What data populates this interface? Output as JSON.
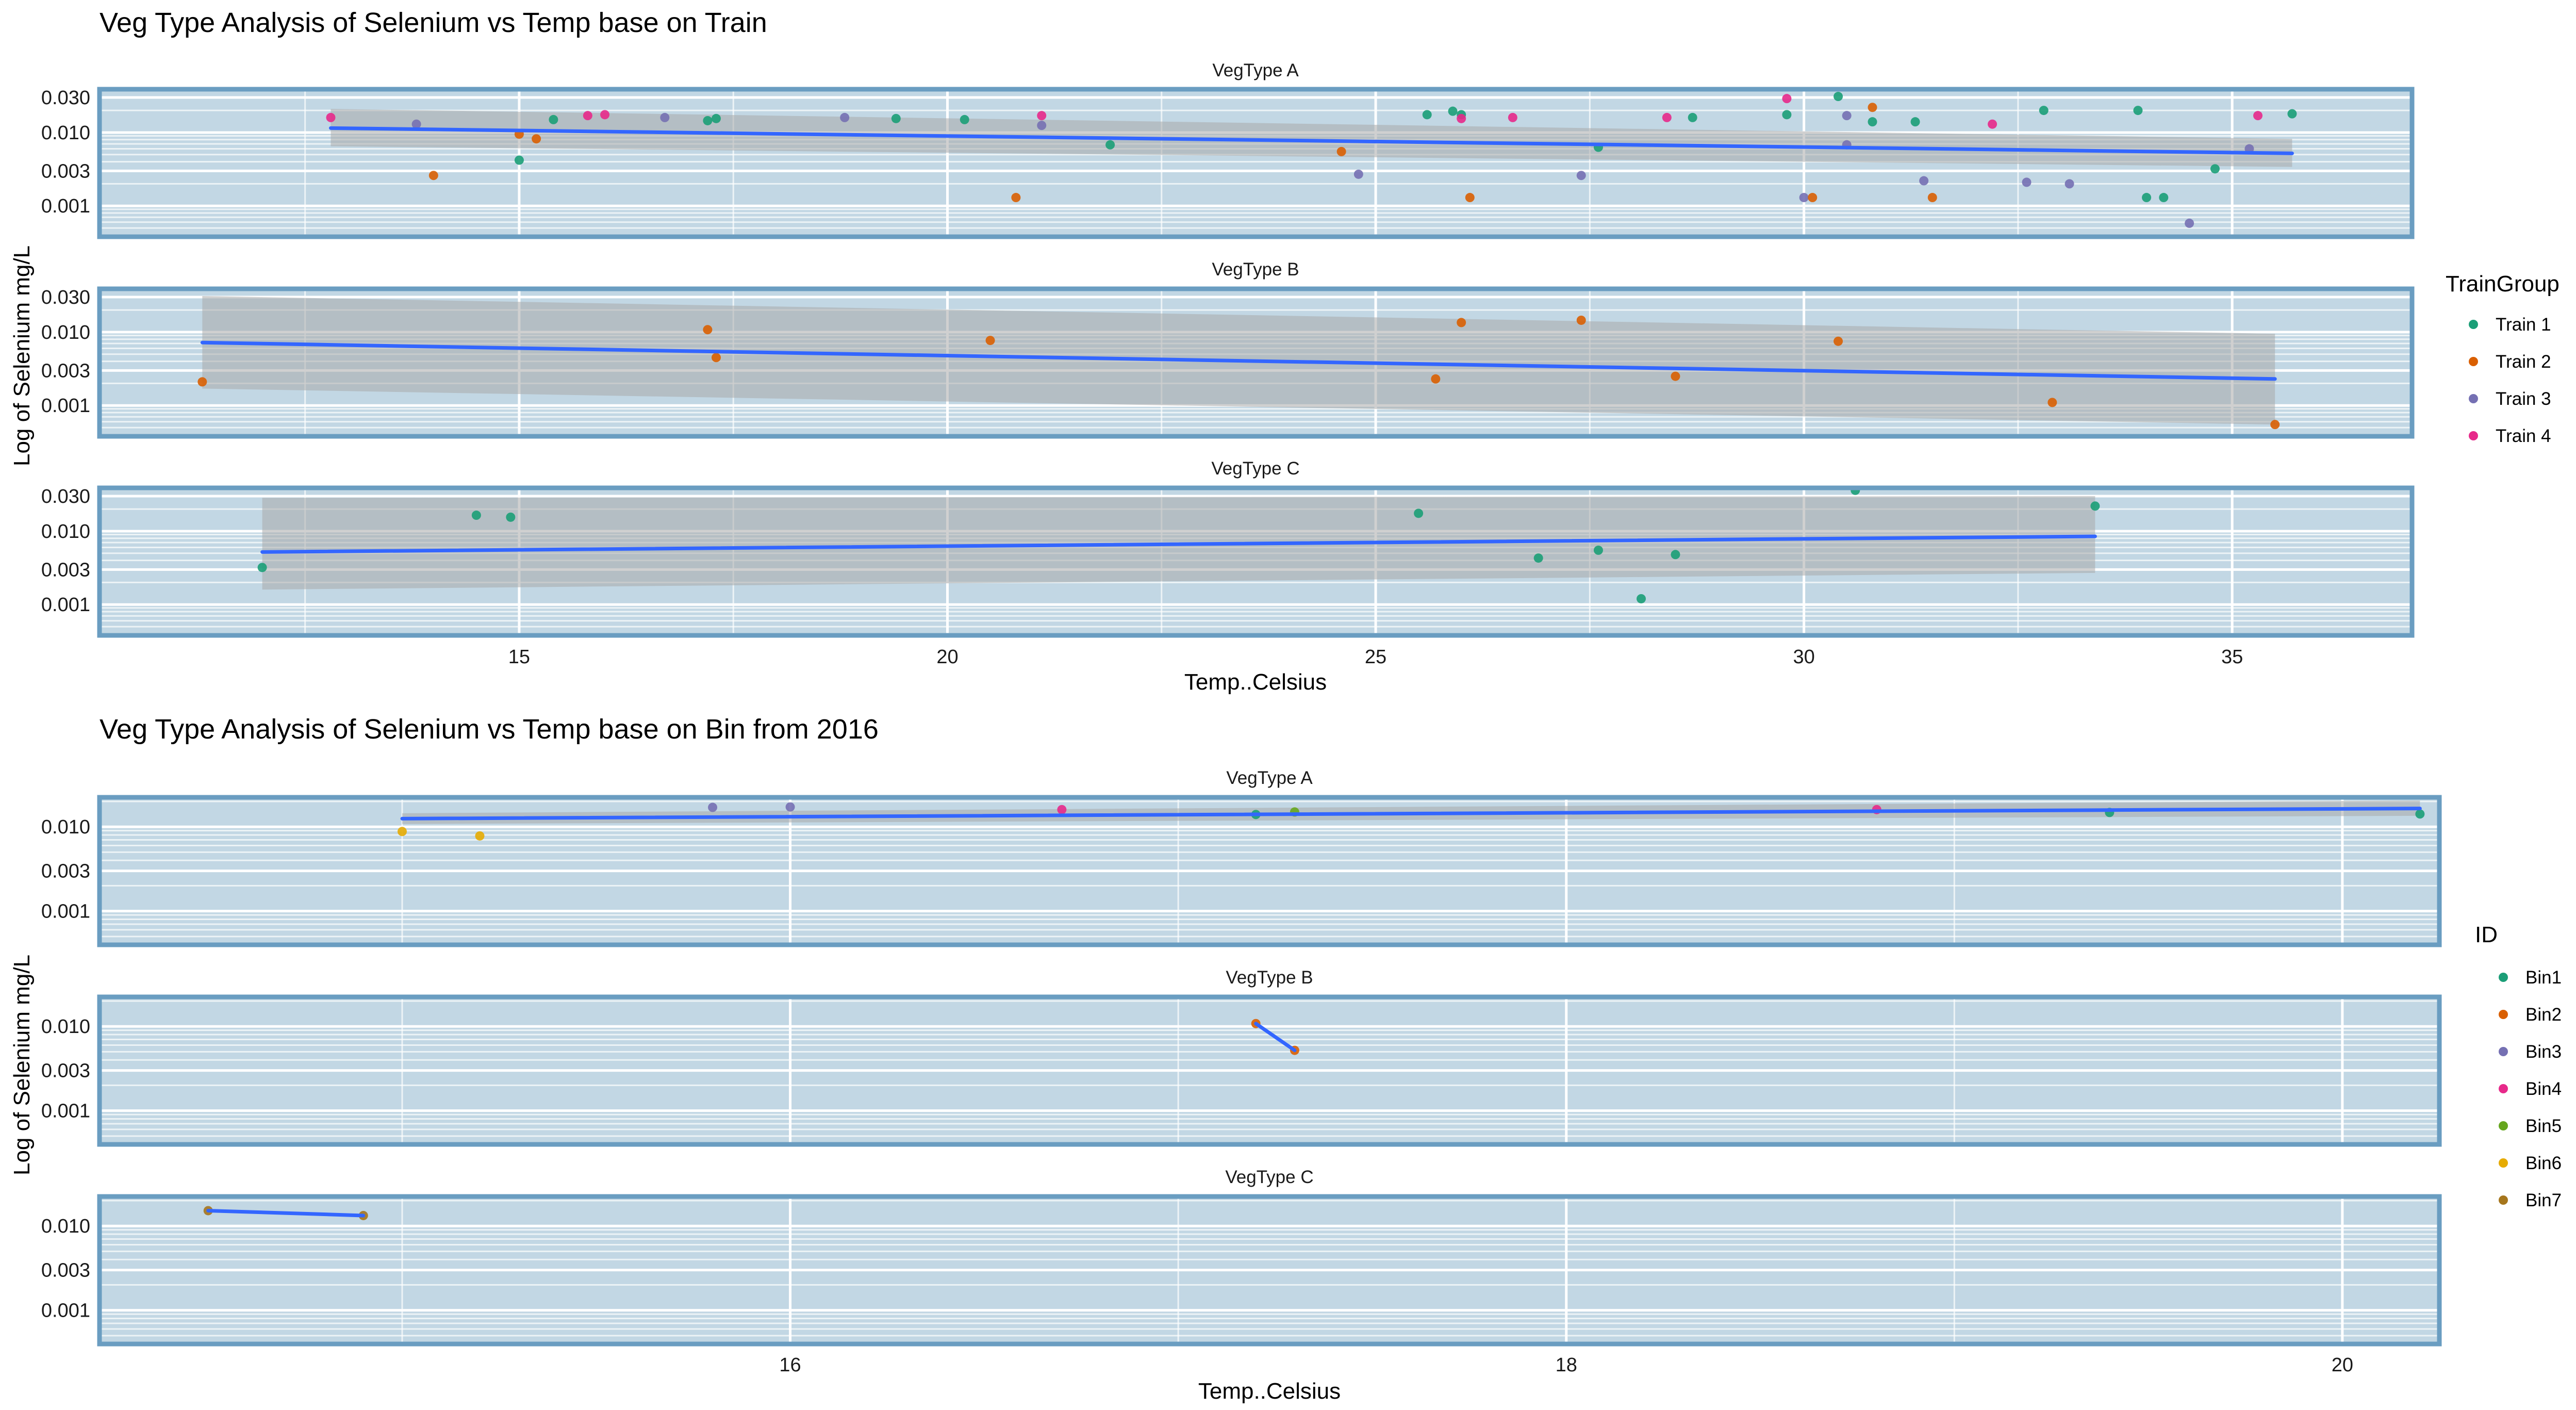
{
  "colors": {
    "panel_bg": "#c2d7e4",
    "panel_border": "#6a9dc1",
    "grid": "#ffffff",
    "smooth_line": "#3366ff",
    "ribbon": "#a9a9a9"
  },
  "chart_data": [
    {
      "type": "scatter",
      "title": "Veg Type Analysis of Selenium vs Temp base on Train",
      "xlabel": "Temp..Celsius",
      "ylabel": "Log of Selenium mg/L",
      "xlim": [
        10.1,
        37.1
      ],
      "ylim_log10": [
        -3.42,
        -1.41
      ],
      "y_scale": "log10",
      "x_ticks": [
        15,
        20,
        25,
        30,
        35
      ],
      "x_tick_labels": [
        "15",
        "20",
        "25",
        "30",
        "35"
      ],
      "y_ticks": [
        0.001,
        0.003,
        0.01,
        0.03
      ],
      "y_tick_labels": [
        "0.001",
        "0.003",
        "0.010",
        "0.030"
      ],
      "grid": true,
      "legend": {
        "title": "TrainGroup",
        "position": "right",
        "labels": [
          "Train 1",
          "Train 2",
          "Train 3",
          "Train 4"
        ],
        "colors": [
          "#1b9e77",
          "#d95f02",
          "#7570b3",
          "#e7298a"
        ]
      },
      "panels": [
        {
          "strip": "VegType A",
          "smooth": {
            "x": [
              12.8,
              35.7
            ],
            "y": [
              0.0115,
              0.0052
            ],
            "band_lo": [
              0.0065,
              0.0034
            ],
            "band_hi": [
              0.021,
              0.0082
            ]
          },
          "points": [
            {
              "x": 12.8,
              "y": 0.016,
              "g": 3
            },
            {
              "x": 13.8,
              "y": 0.013,
              "g": 2
            },
            {
              "x": 14.0,
              "y": 0.0026,
              "g": 1
            },
            {
              "x": 15.0,
              "y": 0.0042,
              "g": 0
            },
            {
              "x": 15.0,
              "y": 0.0095,
              "g": 1
            },
            {
              "x": 15.2,
              "y": 0.0082,
              "g": 1
            },
            {
              "x": 15.4,
              "y": 0.015,
              "g": 0
            },
            {
              "x": 15.8,
              "y": 0.017,
              "g": 3
            },
            {
              "x": 16.0,
              "y": 0.0175,
              "g": 3
            },
            {
              "x": 16.7,
              "y": 0.016,
              "g": 2
            },
            {
              "x": 17.2,
              "y": 0.0145,
              "g": 0
            },
            {
              "x": 17.3,
              "y": 0.0155,
              "g": 0
            },
            {
              "x": 18.8,
              "y": 0.016,
              "g": 2
            },
            {
              "x": 19.4,
              "y": 0.0155,
              "g": 0
            },
            {
              "x": 20.2,
              "y": 0.015,
              "g": 0
            },
            {
              "x": 20.8,
              "y": 0.0013,
              "g": 1
            },
            {
              "x": 21.1,
              "y": 0.0125,
              "g": 2
            },
            {
              "x": 21.1,
              "y": 0.017,
              "g": 3
            },
            {
              "x": 21.9,
              "y": 0.0068,
              "g": 0
            },
            {
              "x": 24.6,
              "y": 0.0055,
              "g": 1
            },
            {
              "x": 24.8,
              "y": 0.0027,
              "g": 2
            },
            {
              "x": 25.6,
              "y": 0.0175,
              "g": 0
            },
            {
              "x": 25.9,
              "y": 0.0195,
              "g": 0
            },
            {
              "x": 26.0,
              "y": 0.0175,
              "g": 0
            },
            {
              "x": 26.0,
              "y": 0.0155,
              "g": 3
            },
            {
              "x": 26.1,
              "y": 0.0013,
              "g": 1
            },
            {
              "x": 26.6,
              "y": 0.016,
              "g": 3
            },
            {
              "x": 27.4,
              "y": 0.0026,
              "g": 2
            },
            {
              "x": 27.6,
              "y": 0.0063,
              "g": 0
            },
            {
              "x": 28.4,
              "y": 0.016,
              "g": 3
            },
            {
              "x": 28.7,
              "y": 0.016,
              "g": 0
            },
            {
              "x": 29.8,
              "y": 0.0175,
              "g": 0
            },
            {
              "x": 29.8,
              "y": 0.029,
              "g": 3
            },
            {
              "x": 30.0,
              "y": 0.0013,
              "g": 2
            },
            {
              "x": 30.1,
              "y": 0.0013,
              "g": 1
            },
            {
              "x": 30.4,
              "y": 0.031,
              "g": 0
            },
            {
              "x": 30.5,
              "y": 0.017,
              "g": 2
            },
            {
              "x": 30.5,
              "y": 0.0068,
              "g": 2
            },
            {
              "x": 30.8,
              "y": 0.022,
              "g": 1
            },
            {
              "x": 30.8,
              "y": 0.014,
              "g": 0
            },
            {
              "x": 31.3,
              "y": 0.014,
              "g": 0
            },
            {
              "x": 31.4,
              "y": 0.0022,
              "g": 2
            },
            {
              "x": 31.5,
              "y": 0.0013,
              "g": 1
            },
            {
              "x": 32.2,
              "y": 0.013,
              "g": 3
            },
            {
              "x": 32.6,
              "y": 0.0021,
              "g": 2
            },
            {
              "x": 32.8,
              "y": 0.02,
              "g": 0
            },
            {
              "x": 33.1,
              "y": 0.002,
              "g": 2
            },
            {
              "x": 33.9,
              "y": 0.02,
              "g": 0
            },
            {
              "x": 34.0,
              "y": 0.0013,
              "g": 0
            },
            {
              "x": 34.2,
              "y": 0.0013,
              "g": 0
            },
            {
              "x": 34.5,
              "y": 0.00058,
              "g": 2
            },
            {
              "x": 34.8,
              "y": 0.0032,
              "g": 0
            },
            {
              "x": 35.2,
              "y": 0.006,
              "g": 2
            },
            {
              "x": 35.3,
              "y": 0.017,
              "g": 3
            },
            {
              "x": 35.7,
              "y": 0.018,
              "g": 0
            }
          ]
        },
        {
          "strip": "VegType B",
          "smooth": {
            "x": [
              11.3,
              35.5
            ],
            "y": [
              0.0072,
              0.0023
            ],
            "band_lo": [
              0.0017,
              0.00055
            ],
            "band_hi": [
              0.031,
              0.0095
            ]
          },
          "points": [
            {
              "x": 11.3,
              "y": 0.0021,
              "g": 1
            },
            {
              "x": 17.2,
              "y": 0.0108,
              "g": 1
            },
            {
              "x": 17.3,
              "y": 0.0045,
              "g": 1
            },
            {
              "x": 20.5,
              "y": 0.0077,
              "g": 1
            },
            {
              "x": 25.7,
              "y": 0.0023,
              "g": 1
            },
            {
              "x": 26.0,
              "y": 0.0135,
              "g": 1
            },
            {
              "x": 27.4,
              "y": 0.0145,
              "g": 1
            },
            {
              "x": 28.5,
              "y": 0.0025,
              "g": 1
            },
            {
              "x": 30.4,
              "y": 0.0075,
              "g": 1
            },
            {
              "x": 32.9,
              "y": 0.0011,
              "g": 1
            },
            {
              "x": 35.5,
              "y": 0.00055,
              "g": 1
            }
          ]
        },
        {
          "strip": "VegType C",
          "smooth": {
            "x": [
              12.0,
              33.4
            ],
            "y": [
              0.0052,
              0.0085
            ],
            "band_lo": [
              0.0016,
              0.0027
            ],
            "band_hi": [
              0.0285,
              0.03
            ]
          },
          "points": [
            {
              "x": 12.0,
              "y": 0.0032,
              "g": 0
            },
            {
              "x": 14.5,
              "y": 0.0165,
              "g": 0
            },
            {
              "x": 14.9,
              "y": 0.0155,
              "g": 0
            },
            {
              "x": 25.5,
              "y": 0.0175,
              "g": 0
            },
            {
              "x": 26.9,
              "y": 0.0043,
              "g": 0
            },
            {
              "x": 27.6,
              "y": 0.0055,
              "g": 0
            },
            {
              "x": 28.1,
              "y": 0.0012,
              "g": 0
            },
            {
              "x": 28.5,
              "y": 0.0048,
              "g": 0
            },
            {
              "x": 30.6,
              "y": 0.036,
              "g": 0
            },
            {
              "x": 33.4,
              "y": 0.022,
              "g": 0
            }
          ]
        }
      ]
    },
    {
      "type": "scatter",
      "title": "Veg Type Analysis of Selenium vs Temp base on Bin from 2016",
      "xlabel": "Temp..Celsius",
      "ylabel": "Log of Selenium mg/L",
      "xlim": [
        14.22,
        20.25
      ],
      "ylim_log10": [
        -3.4,
        -1.65
      ],
      "y_scale": "log10",
      "x_ticks": [
        16,
        18,
        20
      ],
      "x_tick_labels": [
        "16",
        "18",
        "20"
      ],
      "y_ticks": [
        0.001,
        0.003,
        0.01
      ],
      "y_tick_labels": [
        "0.001",
        "0.003",
        "0.010"
      ],
      "grid": true,
      "legend": {
        "title": "ID",
        "position": "right",
        "labels": [
          "Bin1",
          "Bin2",
          "Bin3",
          "Bin4",
          "Bin5",
          "Bin6",
          "Bin7"
        ],
        "colors": [
          "#1b9e77",
          "#d95f02",
          "#7570b3",
          "#e7298a",
          "#66a61e",
          "#e6ab02",
          "#a6761d"
        ]
      },
      "panels": [
        {
          "strip": "VegType A",
          "smooth": {
            "x": [
              15.0,
              20.2
            ],
            "y": [
              0.0125,
              0.0165
            ],
            "band_lo": [
              0.0108,
              0.0135
            ],
            "band_hi": [
              0.0145,
              0.0205
            ]
          },
          "points": [
            {
              "x": 15.0,
              "y": 0.0088,
              "g": 5
            },
            {
              "x": 15.2,
              "y": 0.0078,
              "g": 5
            },
            {
              "x": 15.8,
              "y": 0.017,
              "g": 2
            },
            {
              "x": 16.0,
              "y": 0.0172,
              "g": 2
            },
            {
              "x": 16.7,
              "y": 0.016,
              "g": 3
            },
            {
              "x": 17.2,
              "y": 0.014,
              "g": 0
            },
            {
              "x": 17.3,
              "y": 0.015,
              "g": 4
            },
            {
              "x": 18.8,
              "y": 0.016,
              "g": 3
            },
            {
              "x": 19.4,
              "y": 0.0148,
              "g": 0
            },
            {
              "x": 20.2,
              "y": 0.0142,
              "g": 0
            }
          ]
        },
        {
          "strip": "VegType B",
          "smooth": {
            "x": [
              17.2,
              17.3
            ],
            "y": [
              0.0108,
              0.0052
            ],
            "band_lo": [],
            "band_hi": []
          },
          "points": [
            {
              "x": 17.2,
              "y": 0.0108,
              "g": 1
            },
            {
              "x": 17.3,
              "y": 0.0052,
              "g": 1
            }
          ]
        },
        {
          "strip": "VegType C",
          "smooth": {
            "x": [
              14.5,
              14.9
            ],
            "y": [
              0.0152,
              0.0133
            ],
            "band_lo": [],
            "band_hi": []
          },
          "points": [
            {
              "x": 14.5,
              "y": 0.0152,
              "g": 6
            },
            {
              "x": 14.9,
              "y": 0.0133,
              "g": 6
            }
          ]
        }
      ]
    }
  ]
}
